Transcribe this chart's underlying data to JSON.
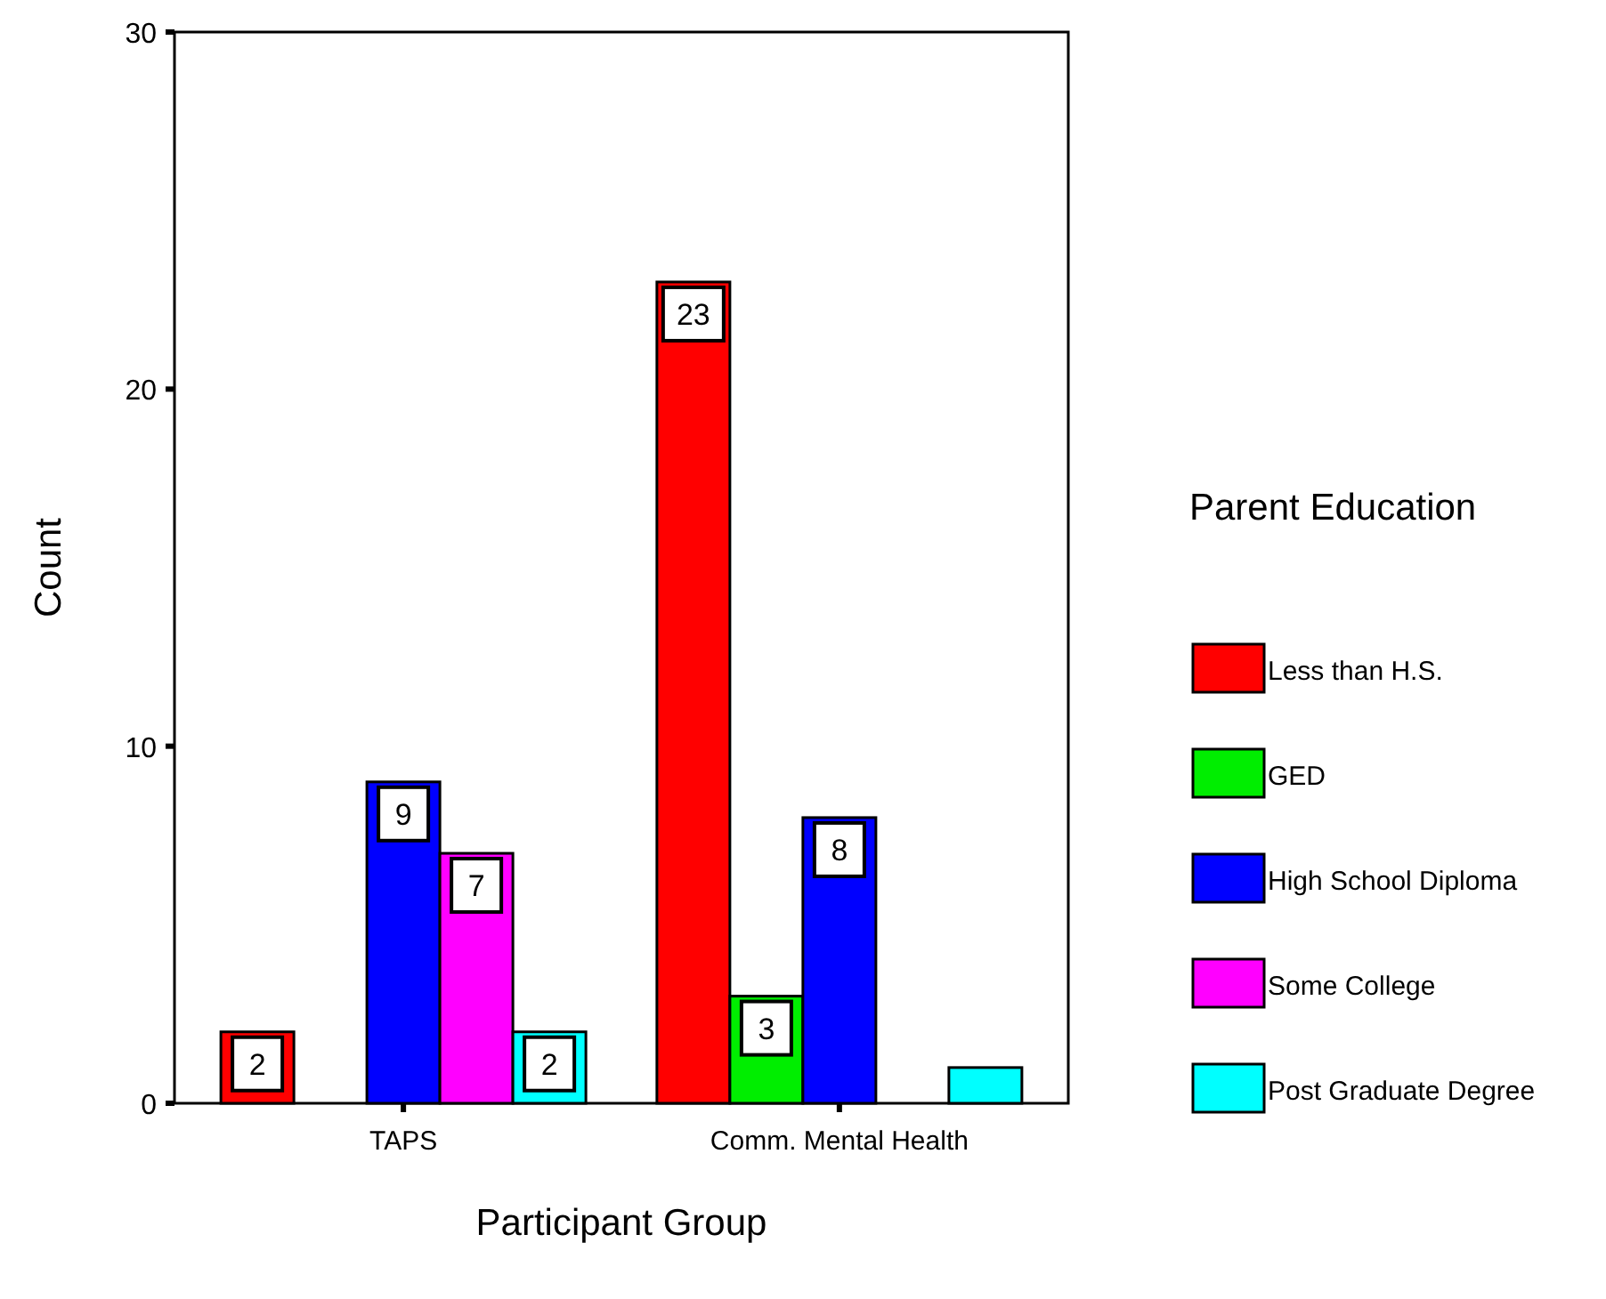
{
  "chart_data": {
    "type": "bar",
    "xlabel": "Participant Group",
    "ylabel": "Count",
    "legend_title": "Parent Education",
    "categories": [
      "TAPS",
      "Comm. Mental Health"
    ],
    "series": [
      {
        "name": "Less than H.S.",
        "color": "#ff0000",
        "values": [
          2,
          23
        ],
        "value_labels": [
          "2",
          "23"
        ]
      },
      {
        "name": "GED",
        "color": "#00ee00",
        "values": [
          0,
          3
        ],
        "value_labels": [
          null,
          "3"
        ]
      },
      {
        "name": "High School Diploma",
        "color": "#0000ff",
        "values": [
          9,
          8
        ],
        "value_labels": [
          "9",
          "8"
        ]
      },
      {
        "name": "Some College",
        "color": "#ff00ff",
        "values": [
          7,
          0
        ],
        "value_labels": [
          "7",
          null
        ]
      },
      {
        "name": "Post Graduate Degree",
        "color": "#00ffff",
        "values": [
          2,
          1
        ],
        "value_labels": [
          "2",
          null
        ]
      }
    ],
    "ylim": [
      0,
      30
    ],
    "yticks": [
      0,
      10,
      20,
      30
    ],
    "grid": false,
    "legend": "right"
  }
}
